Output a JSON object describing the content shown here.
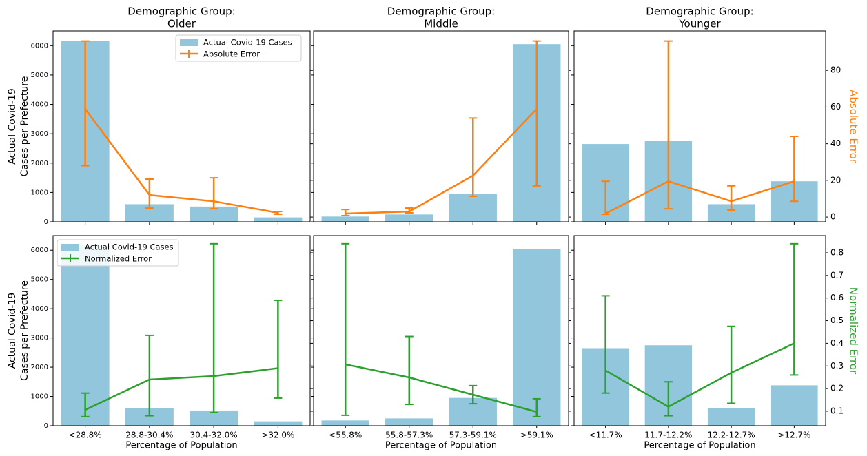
{
  "chart_data": {
    "type": "bar",
    "xlabel": "Percentage of Population",
    "ylabel": [
      "Actual Covid-19",
      "Cases per Prefecture"
    ],
    "bar_label": "Actual Covid-19 Cases",
    "bar_color": "#92c6dc",
    "ylim": [
      0,
      6500
    ],
    "yticks": [
      0,
      1000,
      2000,
      3000,
      4000,
      5000,
      6000
    ],
    "panels": [
      {
        "title": [
          "Demographic Group:",
          "Older"
        ],
        "categories": [
          "<28.8%",
          "28.8-30.4%",
          "30.4-32.0%",
          ">32.0%"
        ],
        "bars": [
          6150,
          600,
          520,
          150
        ]
      },
      {
        "title": [
          "Demographic Group:",
          "Middle"
        ],
        "categories": [
          "<55.8%",
          "55.8-57.3%",
          "57.3-59.1%",
          ">59.1%"
        ],
        "bars": [
          180,
          250,
          950,
          6050
        ]
      },
      {
        "title": [
          "Demographic Group:",
          "Younger"
        ],
        "categories": [
          "<11.7%",
          "11.7-12.2%",
          "12.2-12.7%",
          ">12.7%"
        ],
        "bars": [
          2650,
          2750,
          600,
          1380
        ]
      }
    ],
    "rows": [
      {
        "y2label": "Absolute Error",
        "color": "#ff7f0e",
        "legend_corner": "upper right",
        "y2lim": [
          -2.6,
          101.5
        ],
        "y2ticks": [
          0,
          20,
          40,
          60,
          80
        ],
        "lines": [
          {
            "values": [
              59,
              12,
              8.6,
              2.3
            ],
            "low": [
              28,
              4.9,
              4.5,
              1.5
            ],
            "high": [
              96,
              20.7,
              21.4,
              3
            ]
          },
          {
            "values": [
              1.9,
              3,
              22.6,
              59
            ],
            "low": [
              0.8,
              2.3,
              11.3,
              17
            ],
            "high": [
              4.1,
              4.9,
              54,
              96
            ]
          },
          {
            "values": [
              1.9,
              19.5,
              8.6,
              19.5
            ],
            "low": [
              1.5,
              4.5,
              3.8,
              8.6
            ],
            "high": [
              19.5,
              96,
              17,
              44
            ]
          }
        ]
      },
      {
        "y2label": "Normalized Error",
        "color": "#2ca02c",
        "legend_corner": "upper left",
        "y2lim": [
          0.036,
          0.876
        ],
        "y2ticks": [
          0.1,
          0.2,
          0.3,
          0.4,
          0.5,
          0.6,
          0.7,
          0.8
        ],
        "lines": [
          {
            "values": [
              0.106,
              0.24,
              0.255,
              0.29
            ],
            "low": [
              0.076,
              0.08,
              0.094,
              0.158
            ],
            "high": [
              0.18,
              0.435,
              0.84,
              0.59
            ]
          },
          {
            "values": [
              0.307,
              0.249,
              0.173,
              0.097
            ],
            "low": [
              0.082,
              0.13,
              0.133,
              0.076
            ],
            "high": [
              0.84,
              0.43,
              0.213,
              0.155
            ]
          },
          {
            "values": [
              0.28,
              0.12,
              0.27,
              0.4
            ],
            "low": [
              0.18,
              0.08,
              0.135,
              0.26
            ],
            "high": [
              0.61,
              0.23,
              0.475,
              0.84
            ]
          }
        ]
      }
    ]
  }
}
